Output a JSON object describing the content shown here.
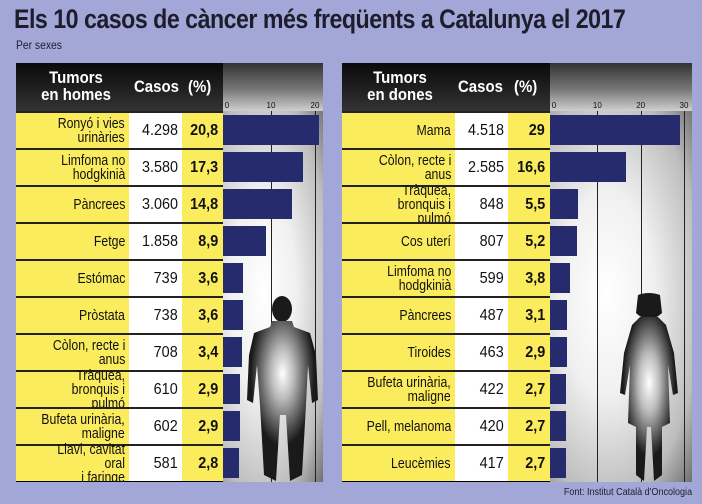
{
  "title": "Els 10 casos de càncer més freqüents a Catalunya el 2017",
  "subtitle": "Per sexes",
  "source": "Font: Institut Català d'Oncologia",
  "colors": {
    "background": "#a3a7d8",
    "label_cell": "#fbec5d",
    "bar": "#262b6e",
    "header": "#111111"
  },
  "men": {
    "header_label": "Tumors\nen homes",
    "header_casos": "Casos",
    "header_pct": "(%)",
    "ticks": [
      "0",
      "10",
      "20"
    ],
    "rows": [
      {
        "label": "Ronyó i vies\nurinàries",
        "casos": "4.298",
        "pct": "20,8"
      },
      {
        "label": "Limfoma no\nhodgkinià",
        "casos": "3.580",
        "pct": "17,3"
      },
      {
        "label": "Pàncrees",
        "casos": "3.060",
        "pct": "14,8"
      },
      {
        "label": "Fetge",
        "casos": "1.858",
        "pct": "8,9"
      },
      {
        "label": "Estómac",
        "casos": "739",
        "pct": "3,6"
      },
      {
        "label": "Pròstata",
        "casos": "738",
        "pct": "3,6"
      },
      {
        "label": "Còlon, recte i\nanus",
        "casos": "708",
        "pct": "3,4"
      },
      {
        "label": "Tràquea,\nbronquis i pulmó",
        "casos": "610",
        "pct": "2,9"
      },
      {
        "label": "Bufeta urinària,\nmaligne",
        "casos": "602",
        "pct": "2,9"
      },
      {
        "label": "Llavi, cavitat oral\ni faringe",
        "casos": "581",
        "pct": "2,8"
      }
    ]
  },
  "women": {
    "header_label": "Tumors\nen dones",
    "header_casos": "Casos",
    "header_pct": "(%)",
    "ticks": [
      "0",
      "10",
      "20",
      "30"
    ],
    "rows": [
      {
        "label": "Mama",
        "casos": "4.518",
        "pct": "29"
      },
      {
        "label": "Còlon, recte i\nanus",
        "casos": "2.585",
        "pct": "16,6"
      },
      {
        "label": "Tràquea,\nbronquis i pulmó",
        "casos": "848",
        "pct": "5,5"
      },
      {
        "label": "Cos uterí",
        "casos": "807",
        "pct": "5,2"
      },
      {
        "label": "Limfoma no\nhodgkinià",
        "casos": "599",
        "pct": "3,8"
      },
      {
        "label": "Pàncrees",
        "casos": "487",
        "pct": "3,1"
      },
      {
        "label": "Tiroides",
        "casos": "463",
        "pct": "2,9"
      },
      {
        "label": "Bufeta urinària,\nmaligne",
        "casos": "422",
        "pct": "2,7"
      },
      {
        "label": "Pell, melanoma",
        "casos": "420",
        "pct": "2,7"
      },
      {
        "label": "Leucèmies",
        "casos": "417",
        "pct": "2,7"
      }
    ]
  },
  "chart_data": [
    {
      "type": "bar",
      "orientation": "horizontal",
      "title": "Tumors en homes",
      "categories": [
        "Ronyó i vies urinàries",
        "Limfoma no hodgkinià",
        "Pàncrees",
        "Fetge",
        "Estómac",
        "Pròstata",
        "Còlon, recte i anus",
        "Tràquea, bronquis i pulmó",
        "Bufeta urinària, maligne",
        "Llavi, cavitat oral i faringe"
      ],
      "series": [
        {
          "name": "Casos",
          "values": [
            4298,
            3580,
            3060,
            1858,
            739,
            738,
            708,
            610,
            602,
            581
          ]
        },
        {
          "name": "(%)",
          "values": [
            20.8,
            17.3,
            14.8,
            8.9,
            3.6,
            3.6,
            3.4,
            2.9,
            2.9,
            2.8
          ]
        }
      ],
      "xlabel": "%",
      "ylabel": "",
      "xlim": [
        0,
        20
      ],
      "xticks": [
        0,
        10,
        20
      ],
      "grid": true
    },
    {
      "type": "bar",
      "orientation": "horizontal",
      "title": "Tumors en dones",
      "categories": [
        "Mama",
        "Còlon, recte i anus",
        "Tràquea, bronquis i pulmó",
        "Cos uterí",
        "Limfoma no hodgkinià",
        "Pàncrees",
        "Tiroides",
        "Bufeta urinària, maligne",
        "Pell, melanoma",
        "Leucèmies"
      ],
      "series": [
        {
          "name": "Casos",
          "values": [
            4518,
            2585,
            848,
            807,
            599,
            487,
            463,
            422,
            420,
            417
          ]
        },
        {
          "name": "(%)",
          "values": [
            29,
            16.6,
            5.5,
            5.2,
            3.8,
            3.1,
            2.9,
            2.7,
            2.7,
            2.7
          ]
        }
      ],
      "xlabel": "%",
      "ylabel": "",
      "xlim": [
        0,
        30
      ],
      "xticks": [
        0,
        10,
        20,
        30
      ],
      "grid": true
    }
  ]
}
